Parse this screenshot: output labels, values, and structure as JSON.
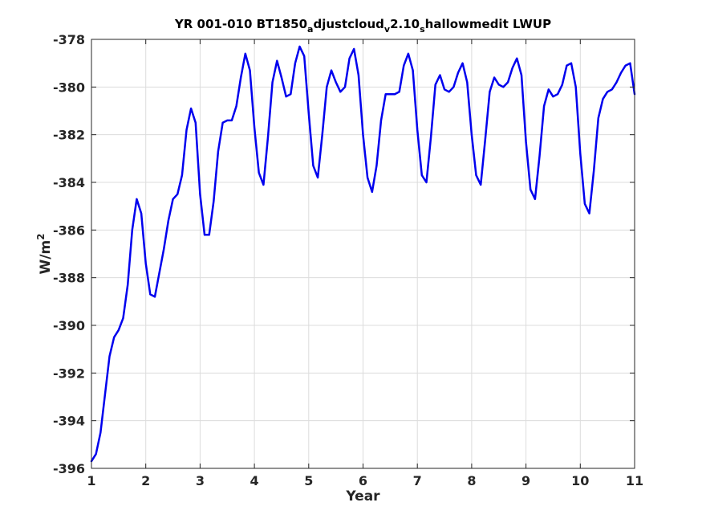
{
  "chart_data": {
    "type": "line",
    "title": {
      "parts": [
        {
          "text": "YR 001-010 BT1850",
          "sub": false
        },
        {
          "text": "a",
          "sub": true
        },
        {
          "text": "djustcloud",
          "sub": false
        },
        {
          "text": "v",
          "sub": true
        },
        {
          "text": "2.10",
          "sub": false
        },
        {
          "text": "s",
          "sub": true
        },
        {
          "text": "hallowmedit LWUP",
          "sub": false
        }
      ]
    },
    "xlabel": "Year",
    "ylabel": {
      "base": "W/m",
      "sup": "2"
    },
    "xlim": [
      1,
      11
    ],
    "ylim": [
      -396,
      -378
    ],
    "xticks": [
      1,
      2,
      3,
      4,
      5,
      6,
      7,
      8,
      9,
      10,
      11
    ],
    "yticks": [
      -396,
      -394,
      -392,
      -390,
      -388,
      -386,
      -384,
      -382,
      -380,
      -378
    ],
    "grid": true,
    "line_color": "#0000ee",
    "series": [
      {
        "x": [
          1.0,
          1.083,
          1.167,
          1.25,
          1.333,
          1.417,
          1.5,
          1.583,
          1.667,
          1.75,
          1.833,
          1.917,
          2.0,
          2.083,
          2.167,
          2.25,
          2.333,
          2.417,
          2.5,
          2.583,
          2.667,
          2.75,
          2.833,
          2.917,
          3.0,
          3.083,
          3.167,
          3.25,
          3.333,
          3.417,
          3.5,
          3.583,
          3.667,
          3.75,
          3.833,
          3.917,
          4.0,
          4.083,
          4.167,
          4.25,
          4.333,
          4.417,
          4.5,
          4.583,
          4.667,
          4.75,
          4.833,
          4.917,
          5.0,
          5.083,
          5.167,
          5.25,
          5.333,
          5.417,
          5.5,
          5.583,
          5.667,
          5.75,
          5.833,
          5.917,
          6.0,
          6.083,
          6.167,
          6.25,
          6.333,
          6.417,
          6.5,
          6.583,
          6.667,
          6.75,
          6.833,
          6.917,
          7.0,
          7.083,
          7.167,
          7.25,
          7.333,
          7.417,
          7.5,
          7.583,
          7.667,
          7.75,
          7.833,
          7.917,
          8.0,
          8.083,
          8.167,
          8.25,
          8.333,
          8.417,
          8.5,
          8.583,
          8.667,
          8.75,
          8.833,
          8.917,
          9.0,
          9.083,
          9.167,
          9.25,
          9.333,
          9.417,
          9.5,
          9.583,
          9.667,
          9.75,
          9.833,
          9.917,
          10.0,
          10.083,
          10.167,
          10.25,
          10.333,
          10.417,
          10.5,
          10.583,
          10.667,
          10.75,
          10.833,
          10.917,
          11.0
        ],
        "values": [
          -395.7,
          -395.4,
          -394.5,
          -392.9,
          -391.3,
          -390.5,
          -390.2,
          -389.7,
          -388.3,
          -386.0,
          -384.7,
          -385.3,
          -387.4,
          -388.7,
          -388.8,
          -387.8,
          -386.8,
          -385.6,
          -384.7,
          -384.5,
          -383.7,
          -381.8,
          -380.9,
          -381.5,
          -384.5,
          -386.2,
          -386.2,
          -384.8,
          -382.7,
          -381.5,
          -381.4,
          -381.4,
          -380.8,
          -379.6,
          -378.6,
          -379.3,
          -381.7,
          -383.6,
          -384.1,
          -382.1,
          -379.8,
          -378.9,
          -379.6,
          -380.4,
          -380.3,
          -379.0,
          -378.3,
          -378.7,
          -381.1,
          -383.3,
          -383.8,
          -382.0,
          -380.0,
          -379.3,
          -379.8,
          -380.2,
          -380.0,
          -378.8,
          -378.4,
          -379.5,
          -382.0,
          -383.8,
          -384.4,
          -383.3,
          -381.4,
          -380.3,
          -380.3,
          -380.3,
          -380.2,
          -379.1,
          -378.6,
          -379.3,
          -381.8,
          -383.7,
          -384.0,
          -382.1,
          -379.9,
          -379.5,
          -380.1,
          -380.2,
          -380.0,
          -379.4,
          -379.0,
          -379.8,
          -382.0,
          -383.7,
          -384.1,
          -382.2,
          -380.2,
          -379.6,
          -379.9,
          -380.0,
          -379.8,
          -379.2,
          -378.8,
          -379.5,
          -382.3,
          -384.3,
          -384.7,
          -382.9,
          -380.8,
          -380.1,
          -380.4,
          -380.3,
          -379.9,
          -379.1,
          -379.0,
          -380.0,
          -382.8,
          -384.9,
          -385.3,
          -383.5,
          -381.3,
          -380.5,
          -380.2,
          -380.1,
          -379.8,
          -379.4,
          -379.1,
          -379.0,
          -380.3
        ]
      }
    ]
  }
}
